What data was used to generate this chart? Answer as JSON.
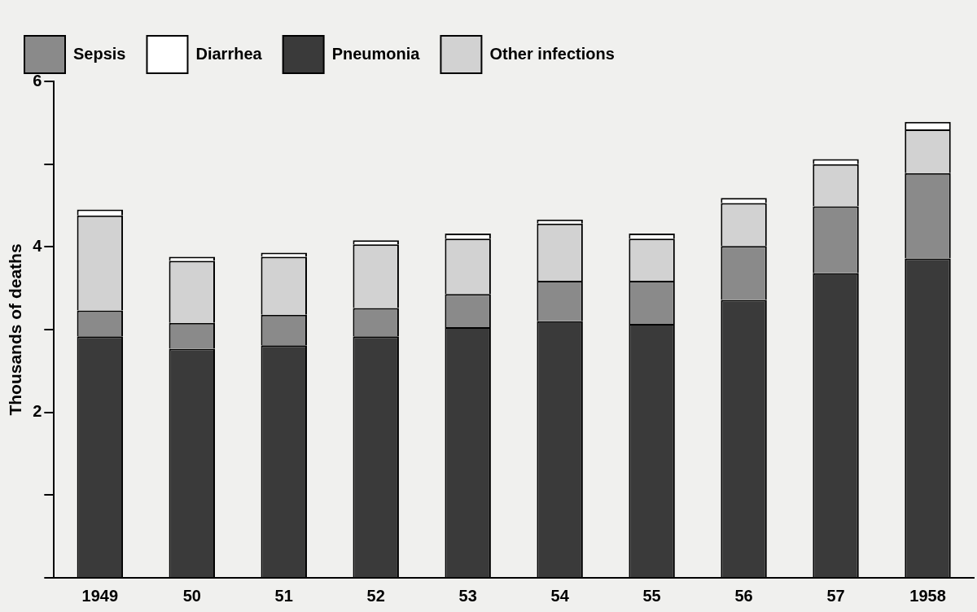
{
  "chart_data": {
    "type": "bar",
    "stacked": true,
    "ylabel": "Thousands of deaths",
    "categories": [
      "1949",
      "50",
      "51",
      "52",
      "53",
      "54",
      "55",
      "56",
      "57",
      "1958"
    ],
    "series": [
      {
        "name": "Pneumonia",
        "color": "#3a3a3a",
        "values": [
          2.92,
          2.77,
          2.81,
          2.92,
          3.03,
          3.1,
          3.07,
          3.36,
          3.68,
          3.86
        ]
      },
      {
        "name": "Sepsis",
        "color": "#8a8a8a",
        "values": [
          0.31,
          0.31,
          0.37,
          0.34,
          0.4,
          0.49,
          0.52,
          0.65,
          0.81,
          1.03
        ]
      },
      {
        "name": "Other infections",
        "color": "#d2d2d2",
        "values": [
          1.15,
          0.75,
          0.7,
          0.77,
          0.67,
          0.69,
          0.51,
          0.52,
          0.51,
          0.53
        ]
      },
      {
        "name": "Diarrhea",
        "color": "#ffffff",
        "values": [
          0.07,
          0.05,
          0.05,
          0.05,
          0.06,
          0.05,
          0.06,
          0.06,
          0.06,
          0.09
        ]
      }
    ],
    "ylim": [
      0,
      6
    ],
    "yticks": [
      {
        "value": 0,
        "label": null
      },
      {
        "value": 1,
        "label": null
      },
      2,
      {
        "value": 3,
        "label": null
      },
      4,
      {
        "value": 5,
        "label": null
      },
      6
    ],
    "grid": false,
    "legend": "top left"
  }
}
